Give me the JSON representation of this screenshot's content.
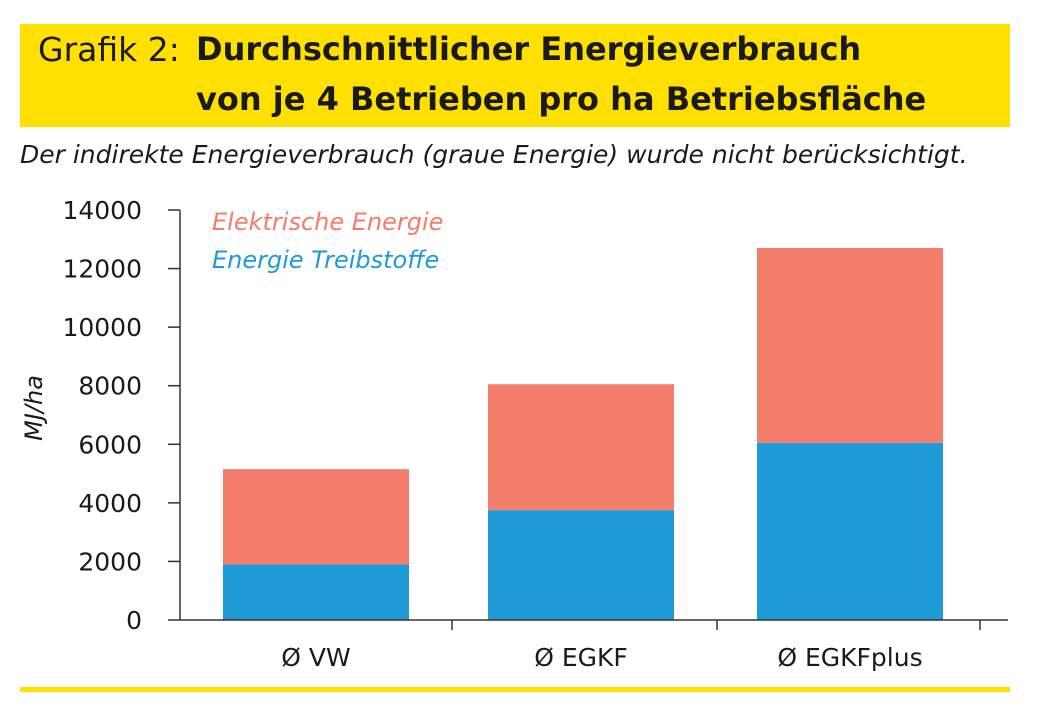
{
  "figure_label": "Grafik 2:",
  "title_line1": "Durchschnittlicher Energieverbrauch",
  "title_line2": "von je 4 Betrieben pro ha Betriebsfläche",
  "subtitle": "Der indirekte Energieverbrauch (graue Energie) wurde nicht berücksichtigt.",
  "colors": {
    "accent_band": "#ffe000",
    "elektrisch": "#f47c6a",
    "treibstoffe": "#1e9ad6"
  },
  "chart_data": {
    "type": "bar",
    "stacked": true,
    "categories": [
      "Ø VW",
      "Ø EGKF",
      "Ø EGKFplus"
    ],
    "series": [
      {
        "name": "Energie Treibstoffe",
        "values": [
          1900,
          3750,
          6050
        ]
      },
      {
        "name": "Elektrische Energie",
        "values": [
          3250,
          4300,
          6650
        ]
      }
    ],
    "ylabel": "MJ/ha",
    "xlabel": "",
    "ylim": [
      0,
      14000
    ],
    "yticks": [
      0,
      2000,
      4000,
      6000,
      8000,
      10000,
      12000,
      14000
    ],
    "ytick_labels": [
      "0",
      "2000",
      "4000",
      "6000",
      "8000",
      "10000",
      "12000",
      "14000"
    ],
    "legend": [
      {
        "label": "Elektrische Energie",
        "series": "Elektrische Energie"
      },
      {
        "label": "Energie Treibstoffe",
        "series": "Energie Treibstoffe"
      }
    ],
    "legend_position": "top-left",
    "grid": false
  }
}
